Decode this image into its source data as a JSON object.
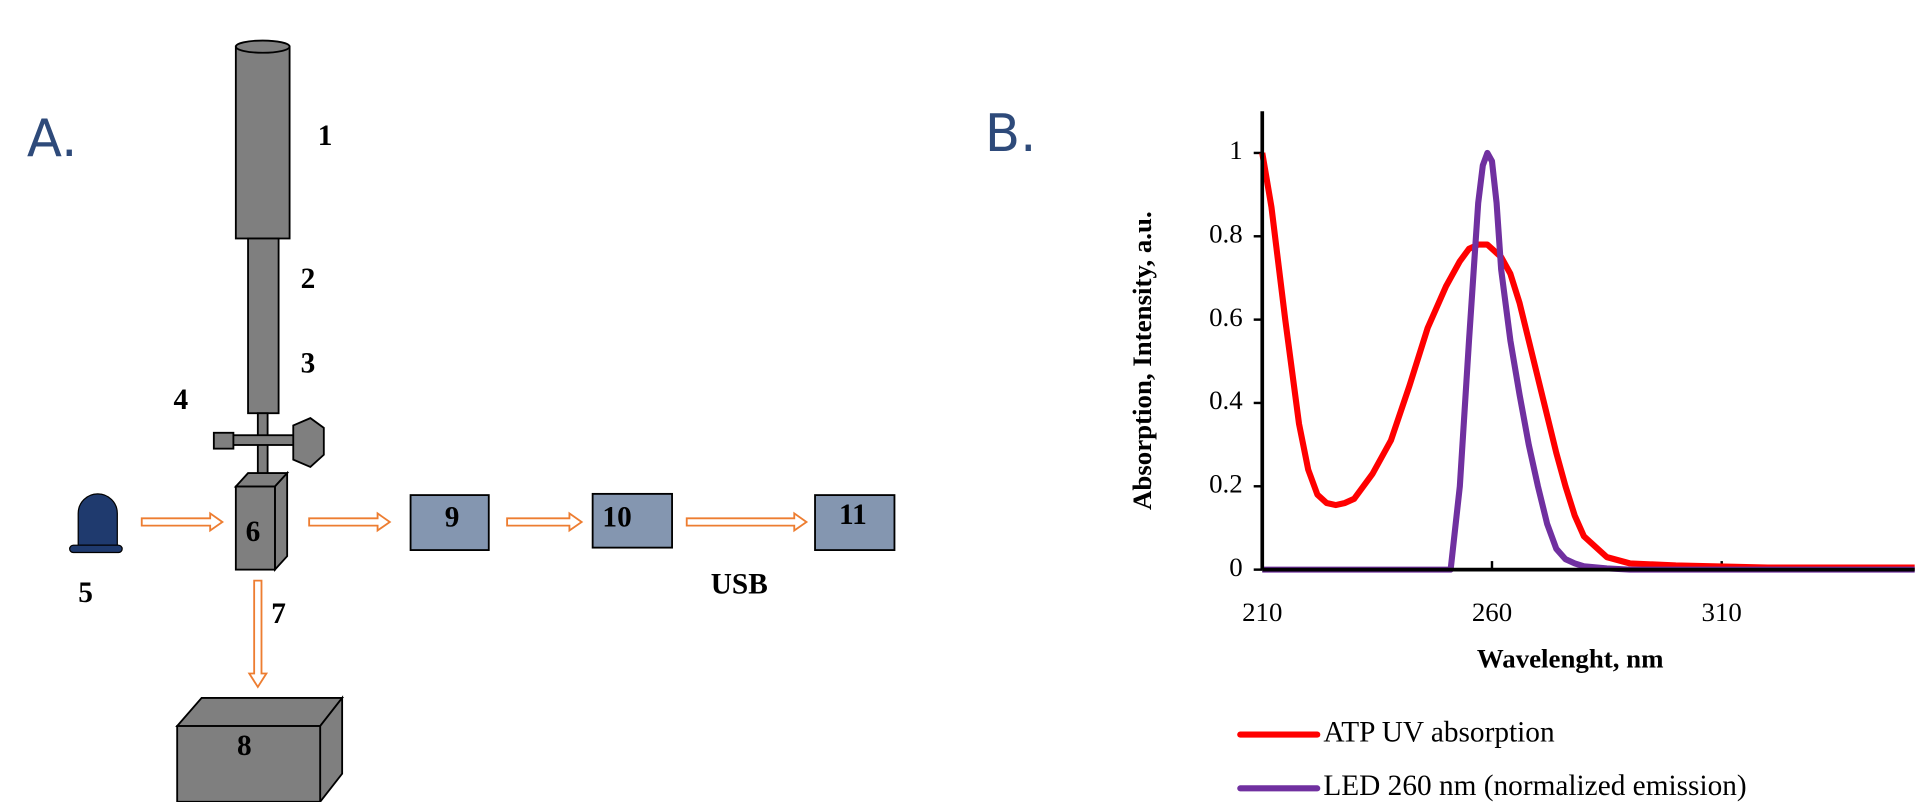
{
  "panel_a": {
    "label": "A.",
    "parts": [
      "1",
      "2",
      "3",
      "4",
      "5",
      "6",
      "7",
      "8",
      "9",
      "10",
      "11"
    ],
    "usb": "USB"
  },
  "panel_b": {
    "label": "B."
  },
  "chart_data": {
    "type": "line",
    "x_label": "Wavelenght, nm",
    "y_label": "Absorption, Intensity, a.u.",
    "x": [
      210,
      212,
      215,
      218,
      220,
      222,
      224,
      226,
      228,
      230,
      234,
      238,
      242,
      246,
      250,
      251,
      253,
      255,
      257,
      258,
      259,
      260,
      261,
      262,
      264,
      266,
      268,
      270,
      272,
      274,
      276,
      278,
      280,
      285,
      290,
      300,
      320,
      352
    ],
    "series": [
      {
        "name": "ATP UV absorption",
        "color": "#ff0000",
        "values": [
          1,
          0.87,
          0.6,
          0.35,
          0.24,
          0.18,
          0.16,
          0.155,
          0.16,
          0.17,
          0.23,
          0.31,
          0.44,
          0.58,
          0.68,
          0.7,
          0.74,
          0.77,
          0.78,
          0.78,
          0.78,
          0.77,
          0.76,
          0.75,
          0.71,
          0.64,
          0.55,
          0.46,
          0.37,
          0.28,
          0.2,
          0.13,
          0.08,
          0.03,
          0.015,
          0.01,
          0.005,
          0.005
        ]
      },
      {
        "name": "LED 260 nm (normalized emission)",
        "color": "#7030a0",
        "values": [
          0,
          0,
          0,
          0,
          0,
          0,
          0,
          0,
          0,
          0,
          0,
          0,
          0,
          0,
          0,
          0,
          0.2,
          0.55,
          0.88,
          0.97,
          1,
          0.98,
          0.88,
          0.72,
          0.55,
          0.42,
          0.3,
          0.2,
          0.11,
          0.05,
          0.025,
          0.015,
          0.008,
          0.003,
          0,
          0,
          0,
          0
        ]
      }
    ],
    "xlim": [
      210,
      352
    ],
    "ylim": [
      0,
      1.1
    ],
    "xticks": [
      210,
      260,
      310
    ],
    "yticks": [
      0,
      0.2,
      0.4,
      0.6,
      0.8,
      1
    ]
  }
}
